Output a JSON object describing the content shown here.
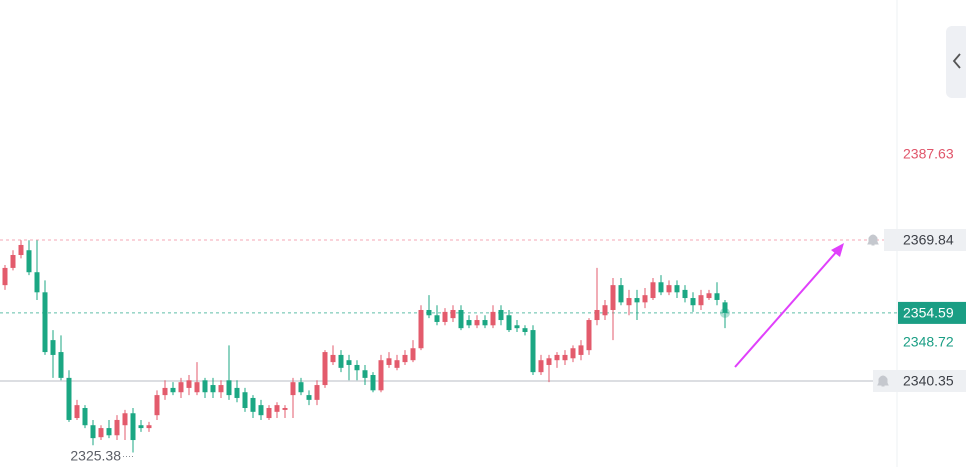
{
  "chart_data": {
    "type": "candlestick",
    "up_color": "#e35b6c",
    "down_color": "#1ba783",
    "ylim": [
      2322.36,
      2420.04
    ],
    "open": [
      2360.4,
      2364.0,
      2366.7,
      2367.7,
      2363.1,
      2358.9,
      2348.9,
      2346.4,
      2341.0,
      2332.6,
      2334.7,
      2331.1,
      2328.6,
      2330.5,
      2329.0,
      2331.1,
      2333.6,
      2331.1,
      2330.5,
      2333.2,
      2337.4,
      2338.9,
      2338.0,
      2338.9,
      2338.0,
      2340.5,
      2339.5,
      2338.0,
      2340.5,
      2338.9,
      2338.0,
      2336.8,
      2335.3,
      2332.6,
      2333.9,
      2334.3,
      2337.4,
      2340.1,
      2337.4,
      2336.4,
      2339.5,
      2344.3,
      2345.8,
      2344.7,
      2343.7,
      2342.6,
      2341.6,
      2338.4,
      2343.7,
      2343.1,
      2344.3,
      2344.7,
      2347.2,
      2355.2,
      2354.1,
      2352.7,
      2353.5,
      2355.2,
      2353.1,
      2352.0,
      2353.1,
      2352.0,
      2355.2,
      2354.1,
      2352.0,
      2351.4,
      2351.0,
      2342.2,
      2343.7,
      2344.7,
      2344.7,
      2345.1,
      2345.8,
      2346.8,
      2353.1,
      2354.1,
      2355.2,
      2360.4,
      2356.2,
      2357.7,
      2356.8,
      2357.7,
      2361.0,
      2358.9,
      2360.4,
      2359.4,
      2357.7,
      2356.2,
      2357.7,
      2358.7,
      2356.8
    ],
    "high": [
      2364.6,
      2367.7,
      2369.8,
      2369.8,
      2369.8,
      2361.4,
      2351.0,
      2349.9,
      2342.6,
      2336.4,
      2335.3,
      2332.2,
      2331.1,
      2332.2,
      2333.2,
      2334.3,
      2334.7,
      2332.2,
      2331.8,
      2338.4,
      2340.5,
      2340.1,
      2341.0,
      2341.6,
      2344.3,
      2341.0,
      2341.0,
      2340.5,
      2347.8,
      2340.5,
      2338.9,
      2337.4,
      2336.4,
      2335.3,
      2335.9,
      2335.3,
      2341.0,
      2341.0,
      2338.4,
      2340.5,
      2346.8,
      2347.8,
      2346.8,
      2345.8,
      2344.7,
      2343.7,
      2342.2,
      2345.8,
      2346.4,
      2345.8,
      2346.8,
      2348.9,
      2356.2,
      2358.3,
      2356.2,
      2355.6,
      2356.2,
      2356.2,
      2354.1,
      2354.1,
      2354.1,
      2356.2,
      2356.2,
      2355.2,
      2353.1,
      2352.0,
      2352.0,
      2345.8,
      2345.8,
      2346.4,
      2346.8,
      2347.8,
      2348.9,
      2353.5,
      2364.0,
      2357.3,
      2361.9,
      2361.9,
      2359.4,
      2359.4,
      2359.8,
      2361.9,
      2362.5,
      2361.4,
      2361.4,
      2360.4,
      2358.9,
      2359.4,
      2359.4,
      2361.0,
      2357.3
    ],
    "low": [
      2359.4,
      2363.5,
      2366.0,
      2362.5,
      2357.3,
      2345.8,
      2341.0,
      2340.5,
      2331.8,
      2332.2,
      2330.5,
      2326.9,
      2328.0,
      2328.4,
      2328.0,
      2328.0,
      2325.38,
      2329.7,
      2329.7,
      2332.2,
      2336.4,
      2337.4,
      2336.8,
      2337.4,
      2337.4,
      2336.8,
      2336.8,
      2336.8,
      2336.4,
      2335.9,
      2333.9,
      2332.6,
      2332.2,
      2332.2,
      2332.6,
      2332.6,
      2332.6,
      2337.4,
      2335.3,
      2335.3,
      2338.9,
      2343.7,
      2342.2,
      2340.5,
      2340.5,
      2339.5,
      2338.0,
      2338.0,
      2343.1,
      2342.6,
      2343.7,
      2344.3,
      2346.8,
      2353.5,
      2352.0,
      2352.0,
      2352.7,
      2351.0,
      2351.4,
      2351.4,
      2351.4,
      2351.4,
      2352.0,
      2350.6,
      2350.6,
      2349.9,
      2341.6,
      2341.6,
      2340.1,
      2343.1,
      2343.7,
      2344.3,
      2344.7,
      2345.8,
      2352.0,
      2353.1,
      2348.9,
      2356.2,
      2354.1,
      2353.1,
      2355.6,
      2357.3,
      2358.3,
      2358.3,
      2357.7,
      2356.8,
      2354.8,
      2355.2,
      2357.3,
      2356.2,
      2351.4
    ],
    "close": [
      2364.0,
      2366.7,
      2368.8,
      2363.1,
      2358.9,
      2346.4,
      2345.8,
      2341.0,
      2332.2,
      2335.3,
      2331.1,
      2328.4,
      2330.5,
      2329.0,
      2332.2,
      2333.6,
      2328.0,
      2330.5,
      2331.1,
      2337.4,
      2338.9,
      2338.0,
      2340.1,
      2340.5,
      2340.1,
      2338.0,
      2338.0,
      2339.5,
      2337.4,
      2336.8,
      2334.7,
      2333.9,
      2333.2,
      2334.7,
      2335.3,
      2334.7,
      2340.1,
      2338.0,
      2336.4,
      2339.5,
      2346.4,
      2345.8,
      2343.1,
      2343.7,
      2342.6,
      2341.0,
      2338.4,
      2344.7,
      2345.1,
      2344.7,
      2345.8,
      2347.2,
      2355.2,
      2354.1,
      2352.7,
      2354.8,
      2355.2,
      2351.4,
      2352.0,
      2353.1,
      2352.0,
      2354.8,
      2353.1,
      2351.0,
      2351.4,
      2350.6,
      2342.2,
      2344.7,
      2345.1,
      2345.8,
      2345.8,
      2347.2,
      2347.8,
      2353.1,
      2355.2,
      2356.2,
      2360.4,
      2356.8,
      2357.7,
      2356.8,
      2358.3,
      2361.0,
      2358.9,
      2360.4,
      2358.9,
      2357.7,
      2356.2,
      2358.3,
      2358.7,
      2357.3,
      2354.59
    ],
    "mark_high": 2387.63,
    "alert_lines": [
      2369.84,
      2340.35
    ],
    "last_price": 2354.59,
    "mark_price": 2348.72,
    "low_label": 2325.38
  }
}
